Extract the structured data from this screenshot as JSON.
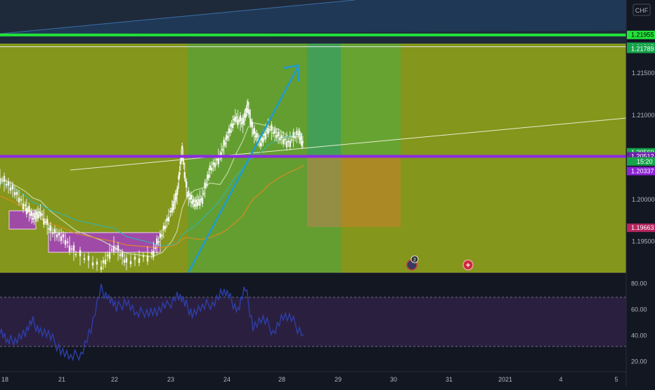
{
  "currency": "CHF",
  "colors": {
    "background": "#131722",
    "zone": "#84961b",
    "green_line": "#22e33a",
    "purple_line": "#8a2be2",
    "arrow": "#1e9bd0",
    "rsi_line": "#2e3ea8",
    "rsi_band": "#2a1f3f"
  },
  "price_axis": {
    "ticks": [
      "1.21500",
      "1.21000",
      "1.20500",
      "1.20000",
      "1.19500"
    ],
    "labels": [
      {
        "price": 1.21955,
        "text": "1.21955",
        "color": "#22e33a",
        "text_color": "#000000"
      },
      {
        "price": 1.21815,
        "text": "1.21815",
        "color": "#16a34a",
        "text_color": "#ffffff"
      },
      {
        "price": 1.21789,
        "text": "1.21789",
        "color": "#16a34a",
        "text_color": "#ffffff"
      },
      {
        "price": 1.2056,
        "text": "1.20560",
        "color": "#16a34a",
        "text_color": "#ffffff"
      },
      {
        "price": 1.20512,
        "text": "1.20512",
        "color": "#6b21a8",
        "text_color": "#ffffff"
      },
      {
        "price": 1.20337,
        "text": "1.20337",
        "color": "#8b21d8",
        "text_color": "#ffffff"
      },
      {
        "price": 1.19663,
        "text": "1.19663",
        "color": "#b3265e",
        "text_color": "#ffffff"
      }
    ],
    "countdown": "15:20"
  },
  "rsi_axis": {
    "ticks": [
      "80.00",
      "60.00",
      "40.00",
      "20.00"
    ],
    "upper": 70,
    "lower": 30
  },
  "time_axis": {
    "labels": [
      "18",
      "21",
      "22",
      "23",
      "24",
      "28",
      "29",
      "30",
      "31",
      "2021",
      "4",
      "5"
    ]
  },
  "events": [
    {
      "badge": "2"
    },
    {
      "badge": "+"
    }
  ],
  "chart_data": {
    "type": "line",
    "symbol_currency": "CHF",
    "ylim": [
      1.1913,
      1.2237
    ],
    "price_series": [
      {
        "t": 0,
        "p": 1.2025
      },
      {
        "t": 0.5,
        "p": 1.2012
      },
      {
        "t": 1,
        "p": 1.1992
      },
      {
        "t": 1.3,
        "p": 1.1978
      },
      {
        "t": 1.6,
        "p": 1.1985
      },
      {
        "t": 2,
        "p": 1.1962
      },
      {
        "t": 2.5,
        "p": 1.1955
      },
      {
        "t": 3,
        "p": 1.1935
      },
      {
        "t": 4,
        "p": 1.192
      },
      {
        "t": 4.5,
        "p": 1.1945
      },
      {
        "t": 5,
        "p": 1.1925
      },
      {
        "t": 6,
        "p": 1.1935
      },
      {
        "t": 6.4,
        "p": 1.1958
      },
      {
        "t": 6.8,
        "p": 1.199
      },
      {
        "t": 7.0,
        "p": 1.2005
      },
      {
        "t": 7.2,
        "p": 1.206
      },
      {
        "t": 7.4,
        "p": 1.2005
      },
      {
        "t": 7.7,
        "p": 1.1995
      },
      {
        "t": 8,
        "p": 1.2002
      },
      {
        "t": 8.3,
        "p": 1.2035
      },
      {
        "t": 8.7,
        "p": 1.2052
      },
      {
        "t": 9,
        "p": 1.2075
      },
      {
        "t": 9.3,
        "p": 1.2098
      },
      {
        "t": 9.6,
        "p": 1.209
      },
      {
        "t": 9.8,
        "p": 1.2112
      },
      {
        "t": 10.0,
        "p": 1.208
      },
      {
        "t": 10.3,
        "p": 1.2067
      },
      {
        "t": 10.6,
        "p": 1.2085
      },
      {
        "t": 11.0,
        "p": 1.2075
      },
      {
        "t": 11.4,
        "p": 1.2068
      },
      {
        "t": 11.8,
        "p": 1.2078
      },
      {
        "t": 12.0,
        "p": 1.2065
      }
    ],
    "rsi_series": [
      {
        "t": 0,
        "v": 46
      },
      {
        "t": 0.3,
        "v": 34
      },
      {
        "t": 0.6,
        "v": 38
      },
      {
        "t": 1.0,
        "v": 42
      },
      {
        "t": 1.3,
        "v": 50
      },
      {
        "t": 1.6,
        "v": 44
      },
      {
        "t": 2.0,
        "v": 38
      },
      {
        "t": 2.4,
        "v": 30
      },
      {
        "t": 2.8,
        "v": 22
      },
      {
        "t": 3.2,
        "v": 27
      },
      {
        "t": 3.6,
        "v": 45
      },
      {
        "t": 4.0,
        "v": 75
      },
      {
        "t": 4.3,
        "v": 70
      },
      {
        "t": 4.6,
        "v": 60
      },
      {
        "t": 5.0,
        "v": 68
      },
      {
        "t": 5.4,
        "v": 55
      },
      {
        "t": 5.8,
        "v": 60
      },
      {
        "t": 6.2,
        "v": 58
      },
      {
        "t": 6.6,
        "v": 62
      },
      {
        "t": 7.0,
        "v": 72
      },
      {
        "t": 7.3,
        "v": 64
      },
      {
        "t": 7.6,
        "v": 58
      },
      {
        "t": 8.0,
        "v": 61
      },
      {
        "t": 8.4,
        "v": 66
      },
      {
        "t": 8.8,
        "v": 74
      },
      {
        "t": 9.1,
        "v": 68
      },
      {
        "t": 9.4,
        "v": 60
      },
      {
        "t": 9.7,
        "v": 76
      },
      {
        "t": 10.0,
        "v": 48
      },
      {
        "t": 10.4,
        "v": 52
      },
      {
        "t": 10.8,
        "v": 44
      },
      {
        "t": 11.2,
        "v": 55
      },
      {
        "t": 11.6,
        "v": 50
      },
      {
        "t": 12.0,
        "v": 41
      }
    ],
    "levels": [
      {
        "price": 1.21955,
        "style": "thick-green"
      },
      {
        "price": 1.21815,
        "style": "thin"
      },
      {
        "price": 1.20512,
        "style": "thick-purple"
      }
    ],
    "rsi_ylim": [
      12,
      88
    ]
  }
}
